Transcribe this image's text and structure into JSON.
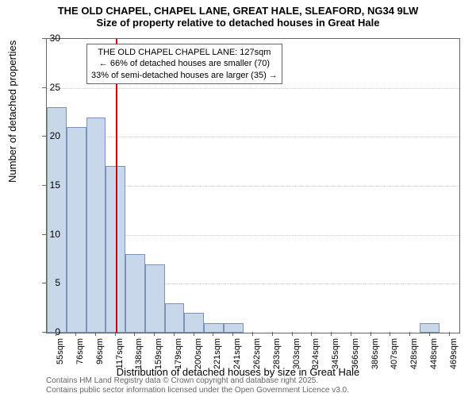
{
  "title_main": "THE OLD CHAPEL, CHAPEL LANE, GREAT HALE, SLEAFORD, NG34 9LW",
  "title_sub": "Size of property relative to detached houses in Great Hale",
  "y_label": "Number of detached properties",
  "x_label": "Distribution of detached houses by size in Great Hale",
  "footer_line1": "Contains HM Land Registry data © Crown copyright and database right 2025.",
  "footer_line2": "Contains public sector information licensed under the Open Government Licence v3.0.",
  "chart": {
    "type": "bar",
    "ylim": [
      0,
      30
    ],
    "yticks": [
      0,
      5,
      10,
      15,
      20,
      25,
      30
    ],
    "xtick_labels": [
      "55sqm",
      "76sqm",
      "96sqm",
      "117sqm",
      "138sqm",
      "159sqm",
      "179sqm",
      "200sqm",
      "221sqm",
      "241sqm",
      "262sqm",
      "283sqm",
      "303sqm",
      "324sqm",
      "345sqm",
      "366sqm",
      "386sqm",
      "407sqm",
      "428sqm",
      "448sqm",
      "469sqm"
    ],
    "bar_values": [
      23,
      21,
      22,
      17,
      8,
      7,
      3,
      2,
      1,
      1,
      0,
      0,
      0,
      0,
      0,
      0,
      0,
      0,
      0,
      1,
      0
    ],
    "bar_fill": "#c9d7eb",
    "bar_stroke": "#7a92b8",
    "grid_color": "#cccccc",
    "background_color": "#ffffff",
    "ref_line_color": "#cc0000",
    "ref_line_position": 3.5,
    "annotation": {
      "line1": "THE OLD CHAPEL CHAPEL LANE: 127sqm",
      "line2": "← 66% of detached houses are smaller (70)",
      "line3": "33% of semi-detached houses are larger (35) →"
    }
  }
}
